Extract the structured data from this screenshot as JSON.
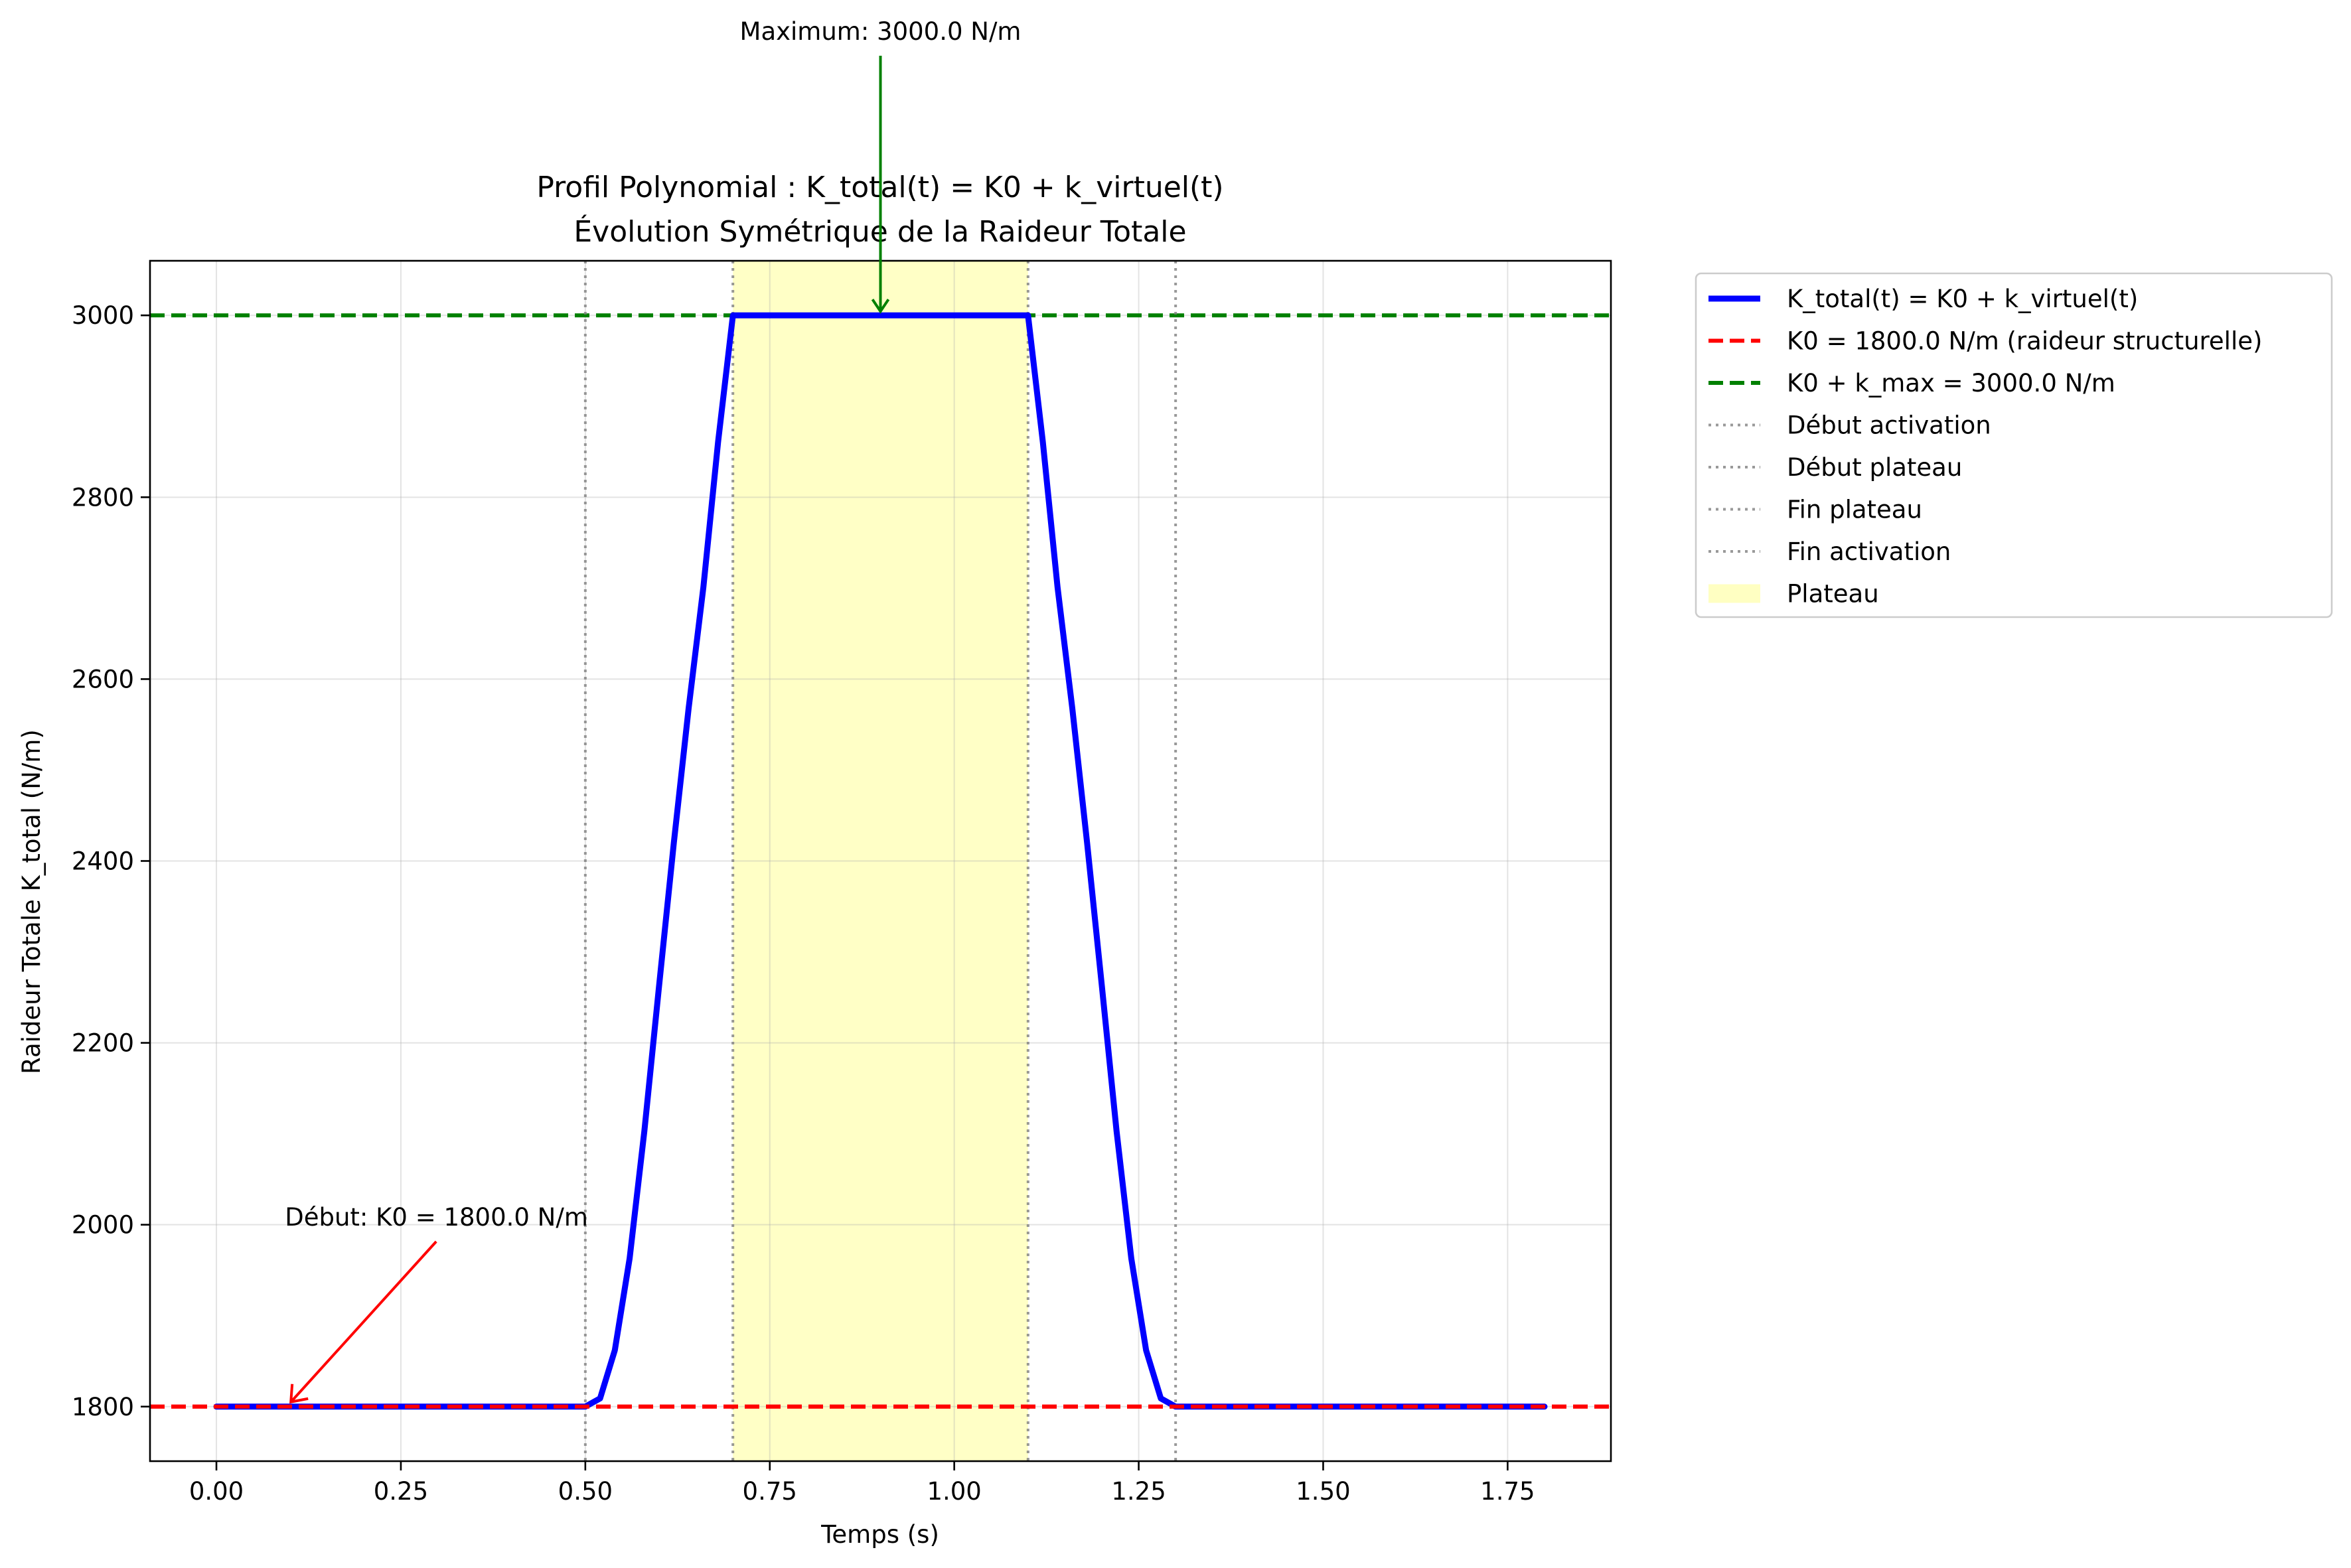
{
  "chart_data": {
    "type": "line",
    "title": "Profil Polynomial : K_total(t) = K0 + k_virtuel(t)",
    "subtitle": "Évolution Symétrique de la Raideur Totale",
    "xlabel": "Temps (s)",
    "ylabel": "Raideur Totale K_total (N/m)",
    "xlim": [
      -0.09,
      1.89
    ],
    "ylim": [
      1740,
      3060
    ],
    "grid": true,
    "legend_position": "outside-upper-right",
    "xticks": [
      0.0,
      0.25,
      0.5,
      0.75,
      1.0,
      1.25,
      1.5,
      1.75
    ],
    "xtick_labels": [
      "0.00",
      "0.25",
      "0.50",
      "0.75",
      "1.00",
      "1.25",
      "1.50",
      "1.75"
    ],
    "yticks": [
      1800,
      2000,
      2200,
      2400,
      2600,
      2800,
      3000
    ],
    "ytick_labels": [
      "1800",
      "2000",
      "2200",
      "2400",
      "2600",
      "2800",
      "3000"
    ],
    "series": [
      {
        "name": "K_total(t) = K0 + k_virtuel(t)",
        "color": "#0000ff",
        "style": "solid",
        "x": [
          0.0,
          0.5,
          0.52,
          0.54,
          0.56,
          0.58,
          0.6,
          0.62,
          0.64,
          0.66,
          0.68,
          0.7,
          1.1,
          1.12,
          1.14,
          1.16,
          1.18,
          1.2,
          1.22,
          1.24,
          1.26,
          1.28,
          1.3,
          1.8
        ],
        "y": [
          1800,
          1800,
          1809,
          1862,
          1963,
          2103,
          2263,
          2420,
          2568,
          2701,
          2861,
          3000,
          3000,
          2861,
          2701,
          2568,
          2420,
          2263,
          2103,
          1963,
          1862,
          1809,
          1800,
          1800
        ]
      }
    ],
    "reference_lines": [
      {
        "name": "K0 = 1800.0 N/m (raideur structurelle)",
        "orientation": "horizontal",
        "value": 1800,
        "color": "#ff0000",
        "style": "dashed"
      },
      {
        "name": "K0 + k_max = 3000.0 N/m",
        "orientation": "horizontal",
        "value": 3000,
        "color": "#008000",
        "style": "dashed"
      },
      {
        "name": "Début activation",
        "orientation": "vertical",
        "value": 0.5,
        "color": "#808080",
        "style": "dotted"
      },
      {
        "name": "Début plateau",
        "orientation": "vertical",
        "value": 0.7,
        "color": "#808080",
        "style": "dotted"
      },
      {
        "name": "Fin plateau",
        "orientation": "vertical",
        "value": 1.1,
        "color": "#808080",
        "style": "dotted"
      },
      {
        "name": "Fin activation",
        "orientation": "vertical",
        "value": 1.3,
        "color": "#808080",
        "style": "dotted"
      }
    ],
    "shaded_regions": [
      {
        "name": "Plateau",
        "x_start": 0.7,
        "x_end": 1.1,
        "color": "#ffffa8"
      }
    ],
    "annotations": [
      {
        "text": "Maximum: 3000.0 N/m",
        "point": [
          0.9,
          3000
        ],
        "color": "#008000"
      },
      {
        "text": "Début: K0 = 1800.0 N/m",
        "point": [
          0.1,
          1800
        ],
        "color": "#ff0000"
      }
    ]
  }
}
